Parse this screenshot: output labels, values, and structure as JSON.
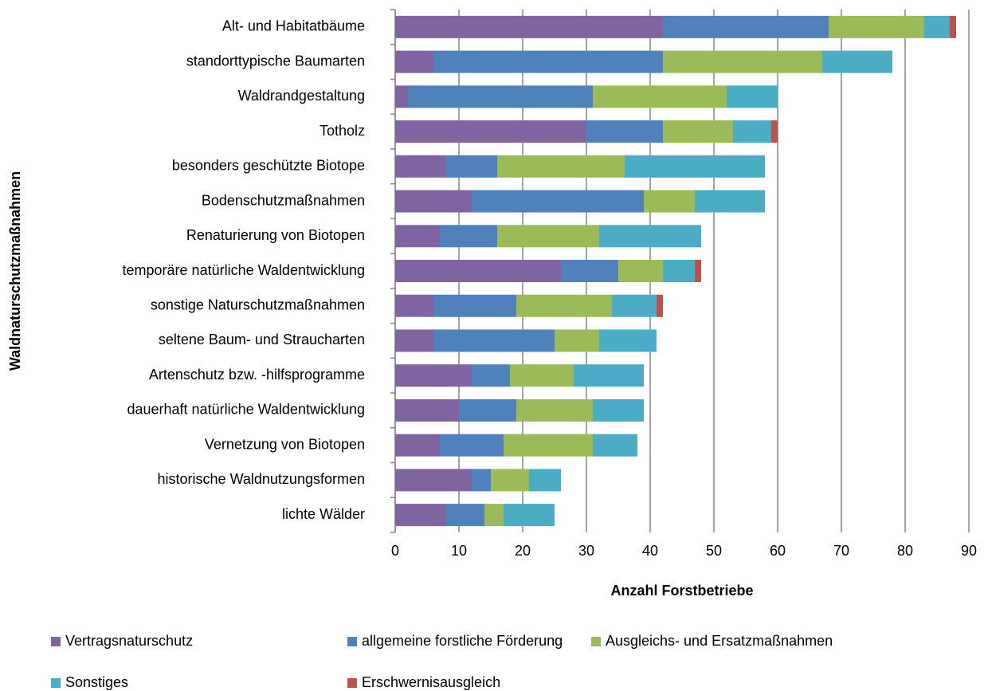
{
  "chart_data": {
    "type": "bar",
    "orientation": "horizontal",
    "stacked": true,
    "xlabel": "Anzahl Forstbetriebe",
    "ylabel": "Waldnaturschutzmaßnahmen",
    "categories": [
      "Alt- und Habitatbäume",
      "standorttypische Baumarten",
      "Waldrandgestaltung",
      "Totholz",
      "besonders geschützte Biotope",
      "Bodenschutzmaßnahmen",
      "Renaturierung von Biotopen",
      "temporäre natürliche Waldentwicklung",
      "sonstige Naturschutzmaßnahmen",
      "seltene Baum- und Straucharten",
      "Artenschutz bzw. -hilfsprogramme",
      "dauerhaft natürliche Waldentwicklung",
      "Vernetzung von Biotopen",
      "historische Waldnutzungsformen",
      "lichte Wälder"
    ],
    "series": [
      {
        "name": "Vertragsnaturschutz",
        "color": "#8064a2",
        "values": [
          42,
          6,
          2,
          30,
          8,
          12,
          7,
          26,
          6,
          6,
          12,
          10,
          7,
          12,
          8
        ]
      },
      {
        "name": "allgemeine forstliche Förderung",
        "color": "#4f81bd",
        "values": [
          26,
          36,
          29,
          12,
          8,
          27,
          9,
          9,
          13,
          19,
          6,
          9,
          10,
          3,
          6
        ]
      },
      {
        "name": "Ausgleichs- und Ersatzmaßnahmen",
        "color": "#9bbb59",
        "values": [
          15,
          25,
          21,
          11,
          20,
          8,
          16,
          7,
          15,
          7,
          10,
          12,
          14,
          6,
          3
        ]
      },
      {
        "name": "Sonstiges",
        "color": "#4bacc6",
        "values": [
          4,
          11,
          8,
          6,
          22,
          11,
          16,
          5,
          7,
          9,
          11,
          8,
          7,
          5,
          8
        ]
      },
      {
        "name": "Erschwernisausgleich",
        "color": "#c0504d",
        "values": [
          1,
          0,
          0,
          1,
          0,
          0,
          0,
          1,
          1,
          0,
          0,
          0,
          0,
          0,
          0
        ]
      }
    ],
    "xlim": [
      0,
      90
    ],
    "xticks": [
      0,
      10,
      20,
      30,
      40,
      50,
      60,
      70,
      80,
      90
    ],
    "grid": true,
    "legend": "bottom"
  }
}
